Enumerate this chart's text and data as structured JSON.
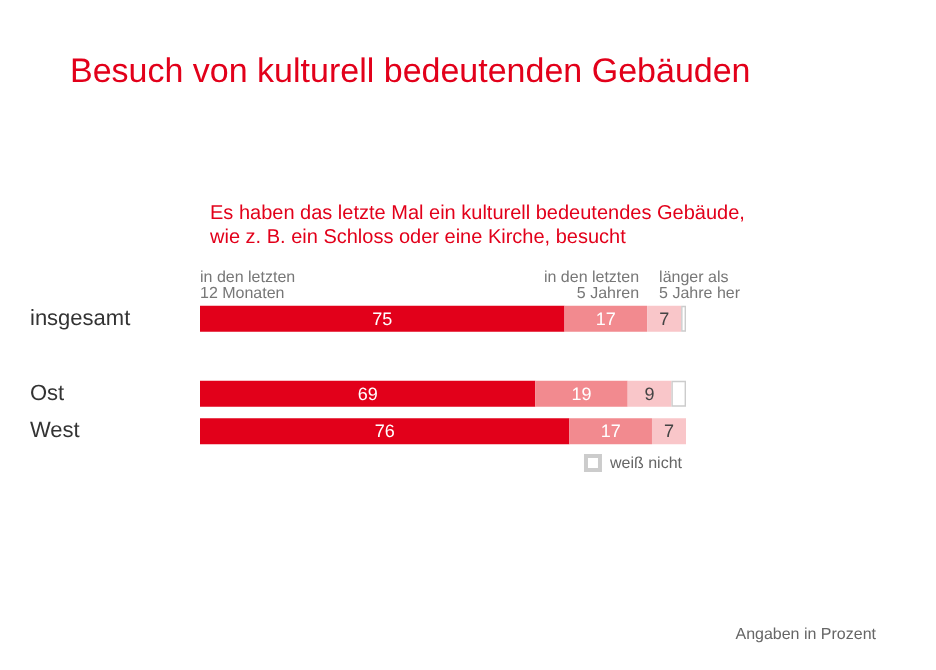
{
  "chart_data": {
    "type": "bar",
    "orientation": "horizontal",
    "stacked": true,
    "title": "Besuch von kulturell bedeutenden Gebäuden",
    "subtitle": "Es haben das letzte Mal ein kulturell bedeutendes Gebäude, wie z. B. ein Schloss oder eine Kirche, besucht",
    "categories": [
      "insgesamt",
      null,
      "Ost",
      "West"
    ],
    "xlim": [
      0,
      100
    ],
    "series": [
      {
        "name": "in den letzten\n12 Monaten",
        "color": "#e2001a",
        "values": [
          75,
          null,
          69,
          76
        ],
        "value_labels": [
          "75",
          null,
          "69",
          "76"
        ]
      },
      {
        "name": "in den letzten\n5 Jahren",
        "color": "#f28a8f",
        "values": [
          17,
          null,
          19,
          17
        ],
        "value_labels": [
          "17",
          null,
          "19",
          "17"
        ]
      },
      {
        "name": "länger als\n5 Jahre her",
        "color": "#f9c6c9",
        "values": [
          7,
          null,
          9,
          7
        ],
        "value_labels": [
          "7",
          null,
          "9",
          "7"
        ]
      },
      {
        "name": "weiß nicht",
        "color": "#ffffff",
        "values": [
          1,
          null,
          3,
          0
        ]
      }
    ],
    "legend": "bottom right",
    "annotations": [
      "Angaben in Prozent"
    ]
  }
}
